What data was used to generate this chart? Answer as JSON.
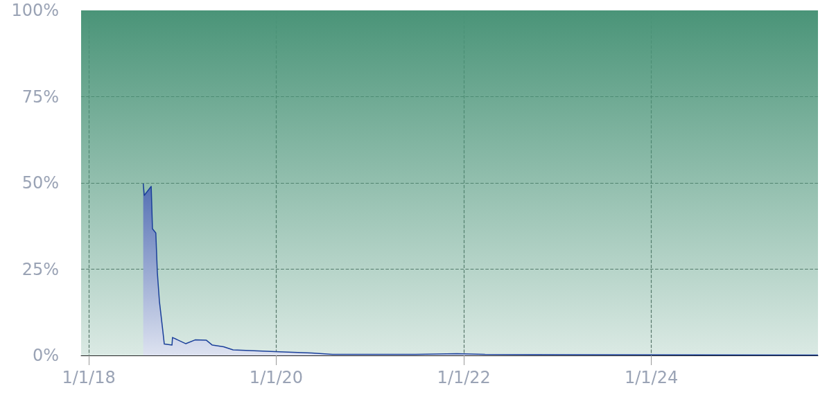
{
  "chart_data": {
    "type": "area",
    "x": [
      "2018-08-01",
      "2018-08-05",
      "2018-09-01",
      "2018-09-06",
      "2018-09-19",
      "2018-09-25",
      "2018-10-03",
      "2018-10-16",
      "2018-10-22",
      "2018-11-21",
      "2018-11-23",
      "2019-01-14",
      "2019-02-19",
      "2019-04-04",
      "2019-04-27",
      "2019-06-10",
      "2019-07-17",
      "2019-12-27",
      "2020-03-07",
      "2020-05-18",
      "2020-08-07",
      "2021-06-27",
      "2021-12-05",
      "2022-03-24",
      "2023-09-16",
      "2025-10-11"
    ],
    "series": [
      {
        "color": "#1a3f9a",
        "values": [
          49.8,
          46.4,
          49,
          36.7,
          35.5,
          24,
          15.7,
          7.3,
          3.3,
          3,
          5.2,
          3.4,
          4.5,
          4.4,
          3,
          2.5,
          1.6,
          1.1,
          0.9,
          0.7,
          0.3,
          0.3,
          0.5,
          0.3,
          0.2,
          0.1
        ]
      }
    ],
    "xlim": [
      "2017-12-02",
      "2025-10-11"
    ],
    "xticks": [
      {
        "value": "2018-01-01",
        "label": "1/1/18"
      },
      {
        "value": "2020-01-01",
        "label": "1/1/20"
      },
      {
        "value": "2022-01-01",
        "label": "1/1/22"
      },
      {
        "value": "2024-01-01",
        "label": "1/1/24"
      }
    ],
    "ylim": [
      0,
      100
    ],
    "yticks": [
      {
        "value": 0,
        "label": "0%"
      },
      {
        "value": 25,
        "label": "25%"
      },
      {
        "value": 50,
        "label": "50%"
      },
      {
        "value": 75,
        "label": "75%"
      },
      {
        "value": 100,
        "label": "100%"
      }
    ],
    "bands": [
      {
        "axis": "y",
        "from": 0,
        "to": 100,
        "color": "#4a9478"
      }
    ],
    "grid": true,
    "marker": "none",
    "line_style": "solid"
  }
}
